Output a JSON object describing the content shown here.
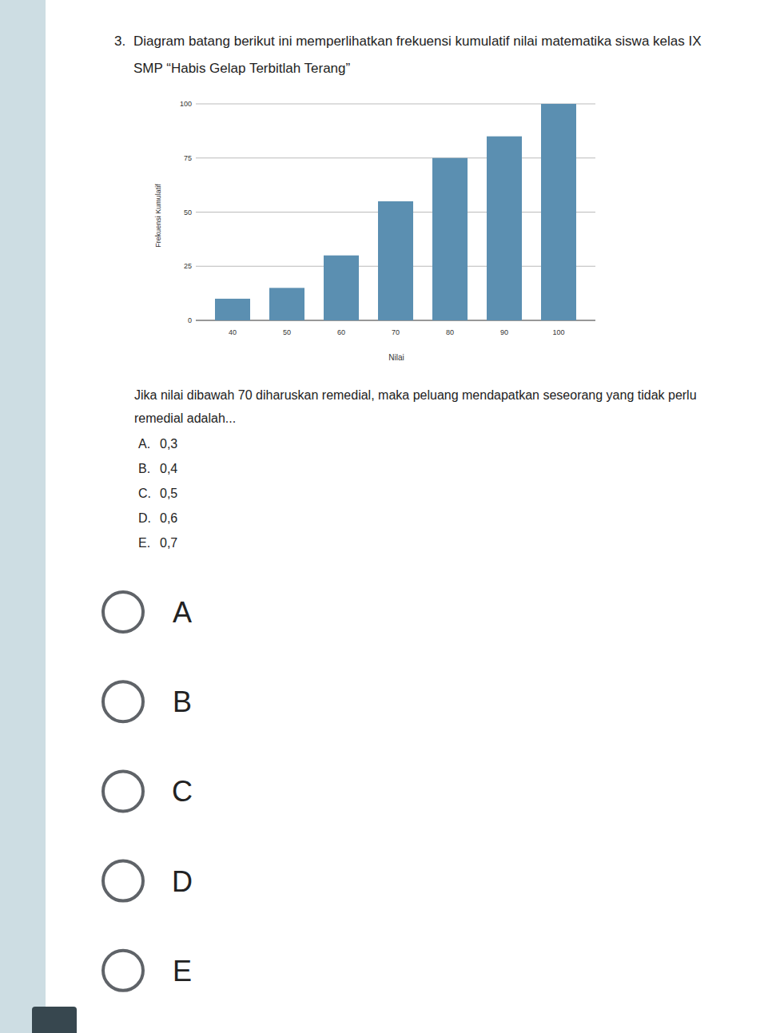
{
  "question": {
    "number": "3.",
    "lines": [
      "Diagram batang berikut ini memperlihatkan frekuensi kumulatif nilai matematika siswa kelas IX",
      "SMP “Habis Gelap Terbitlah Terang”"
    ],
    "prompt_lines": [
      "Jika nilai dibawah 70 diharuskan remedial, maka peluang mendapatkan seseorang yang tidak perlu",
      "remedial adalah..."
    ],
    "options": [
      {
        "letter": "A.",
        "text": "0,3"
      },
      {
        "letter": "B.",
        "text": "0,4"
      },
      {
        "letter": "C.",
        "text": "0,5"
      },
      {
        "letter": "D.",
        "text": "0,6"
      },
      {
        "letter": "E.",
        "text": "0,7"
      }
    ]
  },
  "chart_data": {
    "type": "bar",
    "x_label": "Nilai",
    "y_label": "Frekuensi Kumulatif",
    "categories": [
      "40",
      "50",
      "60",
      "70",
      "80",
      "90",
      "100"
    ],
    "values": [
      10,
      15,
      30,
      55,
      75,
      85,
      100
    ],
    "color": "#5b8fb1",
    "ylim": [
      0,
      100
    ],
    "yticks": [
      0,
      25,
      50,
      75,
      100
    ],
    "grid": true
  },
  "answer_choices": [
    "A",
    "B",
    "C",
    "D",
    "E"
  ]
}
